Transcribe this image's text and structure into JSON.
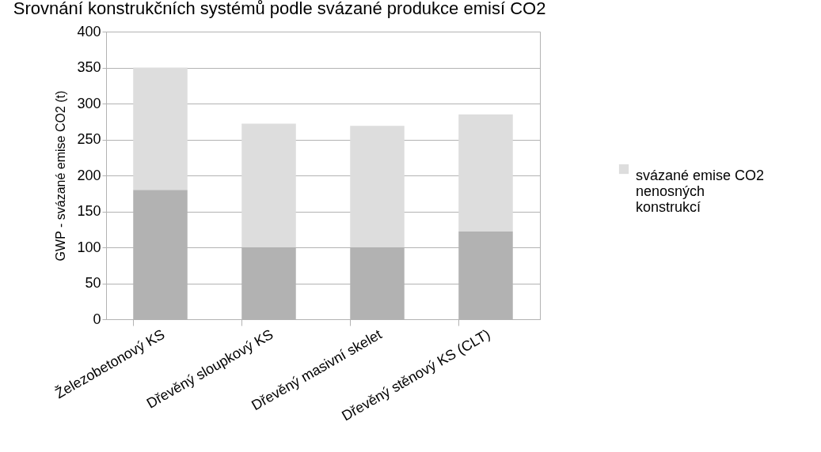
{
  "chart_data": {
    "type": "bar",
    "title": "Srovnání konstrukčních systémů podle svázané produkce emisí CO2",
    "ylabel": "GWP - svázané emise CO2 (t)",
    "categories": [
      "Železobetonový KS",
      "Dřevěný sloupkový KS",
      "Dřevěný masivní skelet",
      "Dřevěný stěnový KS (CLT)"
    ],
    "stacked": true,
    "series": [
      {
        "color": "#b2b2b2",
        "values": [
          180,
          100,
          100,
          122
        ]
      },
      {
        "name": "svázané emise CO2 nenosných konstrukcí",
        "color": "#dddddd",
        "values": [
          170,
          172,
          169,
          163
        ]
      }
    ],
    "ylim": [
      0,
      400
    ],
    "yticks": [
      0,
      50,
      100,
      150,
      200,
      250,
      300,
      350,
      400
    ],
    "grid": "y",
    "legend": "right"
  }
}
